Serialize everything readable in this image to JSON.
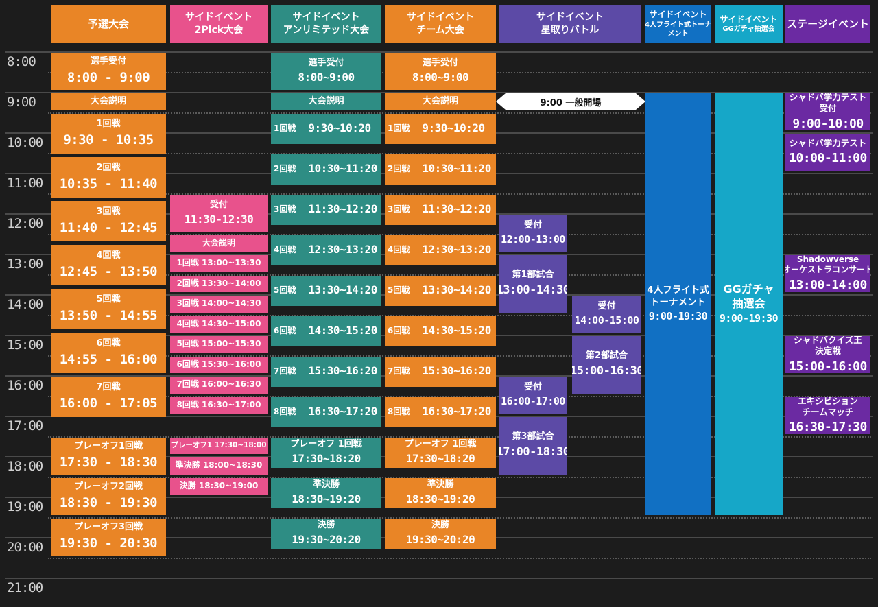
{
  "columns": [
    {
      "id": "qualifier",
      "lines": [
        "予選大会"
      ],
      "color": "#e98526"
    },
    {
      "id": "twopick",
      "lines": [
        "サイドイベント",
        "2Pick大会"
      ],
      "color": "#e8528c"
    },
    {
      "id": "unlimited",
      "lines": [
        "サイドイベント",
        "アンリミテッド大会"
      ],
      "color": "#2e8d84"
    },
    {
      "id": "team",
      "lines": [
        "サイドイベント",
        "チーム大会"
      ],
      "color": "#e98526"
    },
    {
      "id": "hoshitori",
      "lines": [
        "サイドイベント",
        "星取りバトル"
      ],
      "color": "#5c4aa6"
    },
    {
      "id": "flight",
      "lines": [
        "サイドイベント",
        "4人フライト式トーナメント"
      ],
      "color": "#1170c3"
    },
    {
      "id": "gacha",
      "lines": [
        "サイドイベント",
        "GGガチャ抽選会"
      ],
      "color": "#16a7c8"
    },
    {
      "id": "stage",
      "lines": [
        "ステージイベント"
      ],
      "color": "#6b2aa2"
    }
  ],
  "time_labels": [
    "8:00",
    "9:00",
    "10:00",
    "11:00",
    "12:00",
    "13:00",
    "14:00",
    "15:00",
    "16:00",
    "17:00",
    "18:00",
    "19:00",
    "20:00",
    "21:00"
  ],
  "general_open": "9:00 一般開場",
  "events": {
    "qualifier": [
      {
        "title": "選手受付",
        "time": "8:00 - 9:00",
        "start": "8:00",
        "end": "9:00"
      },
      {
        "title": "大会説明",
        "time": "",
        "start": "9:00",
        "end": "9:30"
      },
      {
        "title": "1回戦",
        "time": "9:30 - 10:35",
        "start": "9:30",
        "end": "10:35"
      },
      {
        "title": "2回戦",
        "time": "10:35 - 11:40",
        "start": "10:35",
        "end": "11:40"
      },
      {
        "title": "3回戦",
        "time": "11:40 - 12:45",
        "start": "11:40",
        "end": "12:45"
      },
      {
        "title": "4回戦",
        "time": "12:45 - 13:50",
        "start": "12:45",
        "end": "13:50"
      },
      {
        "title": "5回戦",
        "time": "13:50 - 14:55",
        "start": "13:50",
        "end": "14:55"
      },
      {
        "title": "6回戦",
        "time": "14:55 - 16:00",
        "start": "14:55",
        "end": "16:00"
      },
      {
        "title": "7回戦",
        "time": "16:00 - 17:05",
        "start": "16:00",
        "end": "17:05"
      },
      {
        "title": "プレーオフ1回戦",
        "time": "17:30 - 18:30",
        "start": "17:30",
        "end": "18:30"
      },
      {
        "title": "プレーオフ2回戦",
        "time": "18:30 - 19:30",
        "start": "18:30",
        "end": "19:30"
      },
      {
        "title": "プレーオフ3回戦",
        "time": "19:30 - 20:30",
        "start": "19:30",
        "end": "20:30"
      }
    ],
    "twopick": [
      {
        "title": "受付",
        "time": "11:30-12:30",
        "start": "11:30",
        "end": "12:30"
      },
      {
        "title": "大会説明",
        "time": "",
        "start": "12:30",
        "end": "13:00"
      },
      {
        "title": "1回戦 13:00~13:30",
        "time": "",
        "start": "13:00",
        "end": "13:30"
      },
      {
        "title": "2回戦 13:30~14:00",
        "time": "",
        "start": "13:30",
        "end": "14:00"
      },
      {
        "title": "3回戦 14:00~14:30",
        "time": "",
        "start": "14:00",
        "end": "14:30"
      },
      {
        "title": "4回戦 14:30~15:00",
        "time": "",
        "start": "14:30",
        "end": "15:00"
      },
      {
        "title": "5回戦 15:00~15:30",
        "time": "",
        "start": "15:00",
        "end": "15:30"
      },
      {
        "title": "6回戦 15:30~16:00",
        "time": "",
        "start": "15:30",
        "end": "16:00"
      },
      {
        "title": "7回戦 16:00~16:30",
        "time": "",
        "start": "16:00",
        "end": "16:30"
      },
      {
        "title": "8回戦 16:30~17:00",
        "time": "",
        "start": "16:30",
        "end": "17:00"
      },
      {
        "title": "プレーオフ1 17:30~18:00",
        "time": "",
        "start": "17:30",
        "end": "18:00"
      },
      {
        "title": "準決勝 18:00~18:30",
        "time": "",
        "start": "18:00",
        "end": "18:30"
      },
      {
        "title": "決勝 18:30~19:00",
        "time": "",
        "start": "18:30",
        "end": "19:00"
      }
    ],
    "unlimited": [
      {
        "title": "選手受付",
        "time": "8:00~9:00",
        "start": "8:00",
        "end": "9:00"
      },
      {
        "title": "大会説明",
        "time": "",
        "start": "9:00",
        "end": "9:30"
      },
      {
        "title": "1回戦",
        "time": "9:30~10:20",
        "start": "9:30",
        "end": "10:20",
        "row": true
      },
      {
        "title": "2回戦",
        "time": "10:30~11:20",
        "start": "10:30",
        "end": "11:20",
        "row": true
      },
      {
        "title": "3回戦",
        "time": "11:30~12:20",
        "start": "11:30",
        "end": "12:20",
        "row": true
      },
      {
        "title": "4回戦",
        "time": "12:30~13:20",
        "start": "12:30",
        "end": "13:20",
        "row": true
      },
      {
        "title": "5回戦",
        "time": "13:30~14:20",
        "start": "13:30",
        "end": "14:20",
        "row": true
      },
      {
        "title": "6回戦",
        "time": "14:30~15:20",
        "start": "14:30",
        "end": "15:20",
        "row": true
      },
      {
        "title": "7回戦",
        "time": "15:30~16:20",
        "start": "15:30",
        "end": "16:20",
        "row": true
      },
      {
        "title": "8回戦",
        "time": "16:30~17:20",
        "start": "16:30",
        "end": "17:20",
        "row": true
      },
      {
        "title": "プレーオフ 1回戦",
        "time": "17:30~18:20",
        "start": "17:30",
        "end": "18:20"
      },
      {
        "title": "準決勝",
        "time": "18:30~19:20",
        "start": "18:30",
        "end": "19:20"
      },
      {
        "title": "決勝",
        "time": "19:30~20:20",
        "start": "19:30",
        "end": "20:20"
      }
    ],
    "team": [
      {
        "title": "選手受付",
        "time": "8:00~9:00",
        "start": "8:00",
        "end": "9:00"
      },
      {
        "title": "大会説明",
        "time": "",
        "start": "9:00",
        "end": "9:30"
      },
      {
        "title": "1回戦",
        "time": "9:30~10:20",
        "start": "9:30",
        "end": "10:20",
        "row": true
      },
      {
        "title": "2回戦",
        "time": "10:30~11:20",
        "start": "10:30",
        "end": "11:20",
        "row": true
      },
      {
        "title": "3回戦",
        "time": "11:30~12:20",
        "start": "11:30",
        "end": "12:20",
        "row": true
      },
      {
        "title": "4回戦",
        "time": "12:30~13:20",
        "start": "12:30",
        "end": "13:20",
        "row": true
      },
      {
        "title": "5回戦",
        "time": "13:30~14:20",
        "start": "13:30",
        "end": "14:20",
        "row": true
      },
      {
        "title": "6回戦",
        "time": "14:30~15:20",
        "start": "14:30",
        "end": "15:20",
        "row": true
      },
      {
        "title": "7回戦",
        "time": "15:30~16:20",
        "start": "15:30",
        "end": "16:20",
        "row": true
      },
      {
        "title": "8回戦",
        "time": "16:30~17:20",
        "start": "16:30",
        "end": "17:20",
        "row": true
      },
      {
        "title": "プレーオフ 1回戦",
        "time": "17:30~18:20",
        "start": "17:30",
        "end": "18:20"
      },
      {
        "title": "準決勝",
        "time": "18:30~19:20",
        "start": "18:30",
        "end": "19:20"
      },
      {
        "title": "決勝",
        "time": "19:30~20:20",
        "start": "19:30",
        "end": "20:20"
      }
    ],
    "hoshitori": [
      {
        "title": "受付",
        "time": "12:00-13:00",
        "start": "12:00",
        "end": "13:00",
        "sub": "a"
      },
      {
        "title": "第1部試合",
        "time": "13:00-14:30",
        "start": "13:00",
        "end": "14:30",
        "sub": "a"
      },
      {
        "title": "受付",
        "time": "14:00-15:00",
        "start": "14:00",
        "end": "15:00",
        "sub": "b"
      },
      {
        "title": "第2部試合",
        "time": "15:00-16:30",
        "start": "15:00",
        "end": "16:30",
        "sub": "b"
      },
      {
        "title": "受付",
        "time": "16:00-17:00",
        "start": "16:00",
        "end": "17:00",
        "sub": "a"
      },
      {
        "title": "第3部試合",
        "time": "17:00-18:30",
        "start": "17:00",
        "end": "18:30",
        "sub": "a"
      }
    ],
    "flight": [
      {
        "title": "4人フライト式\nトーナメント",
        "time": "9:00-19:30",
        "start": "9:00",
        "end": "19:30"
      }
    ],
    "gacha": [
      {
        "title": "GGガチャ\n抽選会",
        "time": "9:00-19:30",
        "start": "9:00",
        "end": "19:30"
      }
    ],
    "stage": [
      {
        "title": "シャドバ学力テスト\n受付",
        "time": "9:00-10:00",
        "start": "9:00",
        "end": "10:00"
      },
      {
        "title": "シャドバ学力テスト",
        "time": "10:00-11:00",
        "start": "10:00",
        "end": "11:00"
      },
      {
        "title": "Shadowverse\nオーケストラコンサート",
        "time": "13:00-14:00",
        "start": "13:00",
        "end": "14:00"
      },
      {
        "title": "シャドバクイズ王\n決定戦",
        "time": "15:00-16:00",
        "start": "15:00",
        "end": "16:00"
      },
      {
        "title": "エキシビション\nチームマッチ",
        "time": "16:30-17:30",
        "start": "16:30",
        "end": "17:30"
      }
    ]
  }
}
